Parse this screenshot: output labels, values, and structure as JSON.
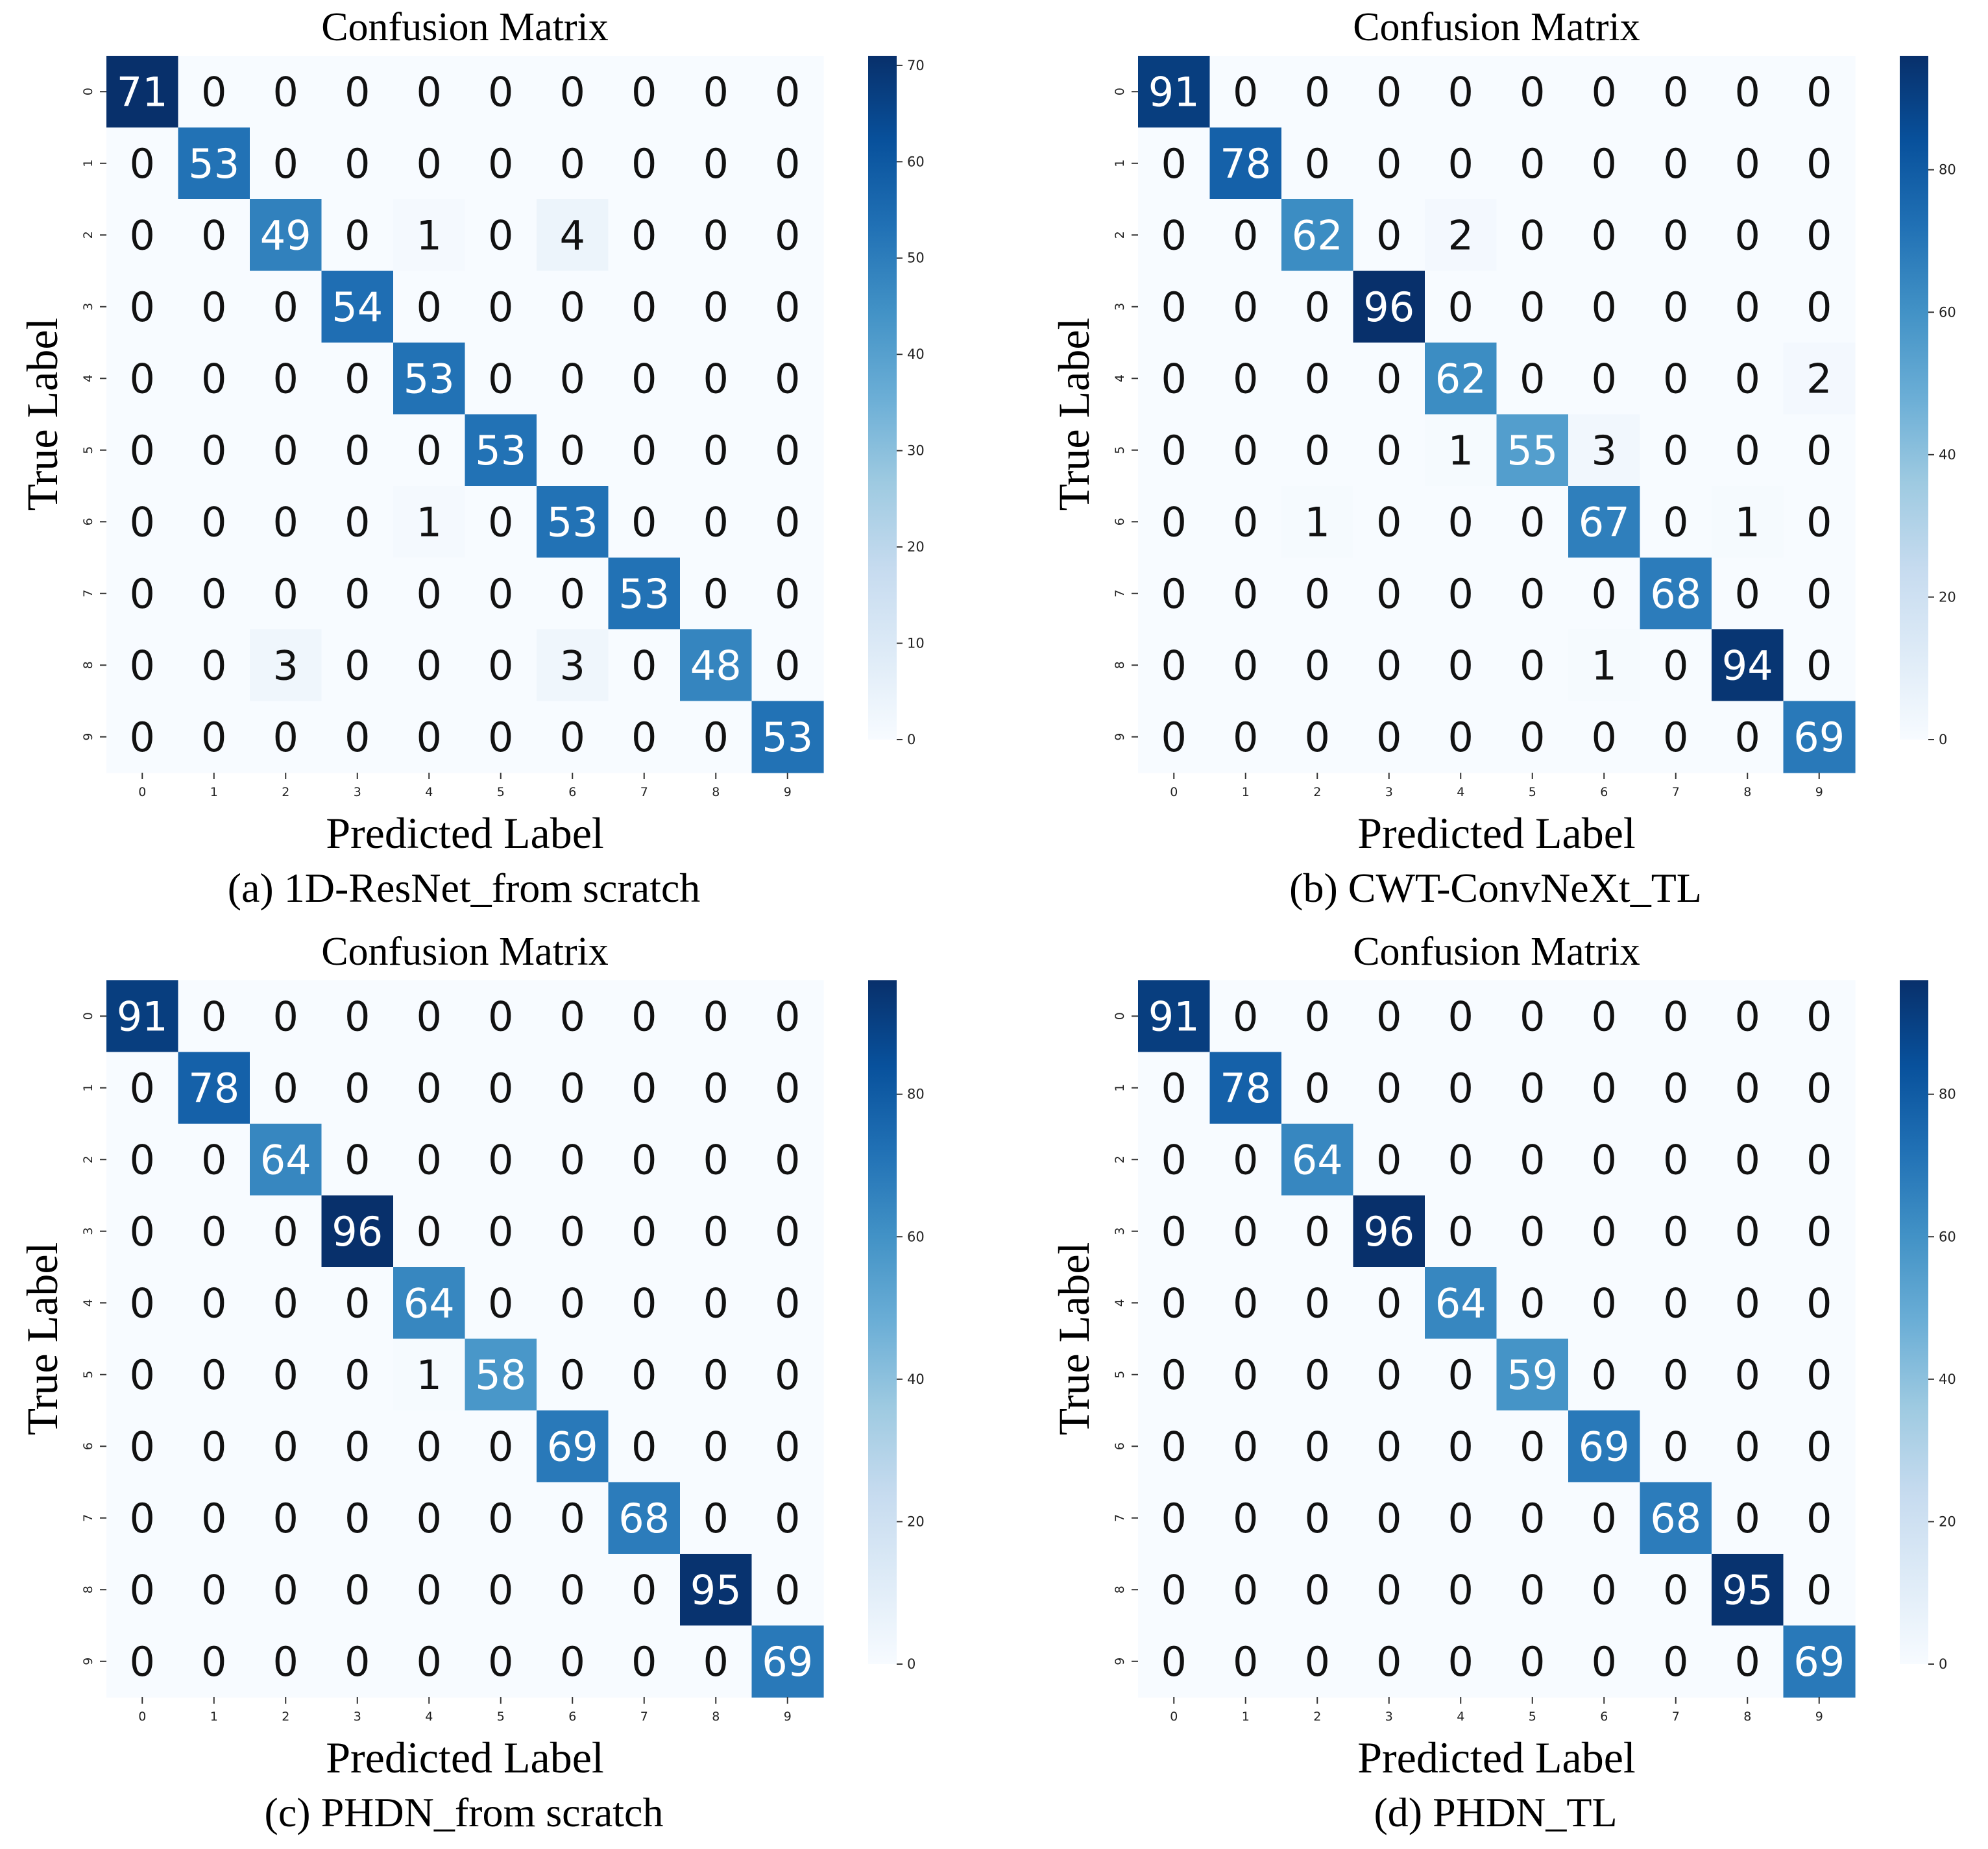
{
  "chart_data": [
    {
      "type": "heatmap",
      "title": "Confusion Matrix",
      "xlabel": "Predicted Label",
      "ylabel": "True Label",
      "caption": "(a) 1D-ResNet_from scratch",
      "x_ticks": [
        "0",
        "1",
        "2",
        "3",
        "4",
        "5",
        "6",
        "7",
        "8",
        "9"
      ],
      "y_ticks": [
        "0",
        "1",
        "2",
        "3",
        "4",
        "5",
        "6",
        "7",
        "8",
        "9"
      ],
      "colorbar": {
        "vmin": 0,
        "vmax": 71,
        "ticks": [
          0,
          10,
          20,
          30,
          40,
          50,
          60,
          70
        ]
      },
      "matrix": [
        [
          71,
          0,
          0,
          0,
          0,
          0,
          0,
          0,
          0,
          0
        ],
        [
          0,
          53,
          0,
          0,
          0,
          0,
          0,
          0,
          0,
          0
        ],
        [
          0,
          0,
          49,
          0,
          1,
          0,
          4,
          0,
          0,
          0
        ],
        [
          0,
          0,
          0,
          54,
          0,
          0,
          0,
          0,
          0,
          0
        ],
        [
          0,
          0,
          0,
          0,
          53,
          0,
          0,
          0,
          0,
          0
        ],
        [
          0,
          0,
          0,
          0,
          0,
          53,
          0,
          0,
          0,
          0
        ],
        [
          0,
          0,
          0,
          0,
          1,
          0,
          53,
          0,
          0,
          0
        ],
        [
          0,
          0,
          0,
          0,
          0,
          0,
          0,
          53,
          0,
          0
        ],
        [
          0,
          0,
          3,
          0,
          0,
          0,
          3,
          0,
          48,
          0
        ],
        [
          0,
          0,
          0,
          0,
          0,
          0,
          0,
          0,
          0,
          53
        ]
      ]
    },
    {
      "type": "heatmap",
      "title": "Confusion Matrix",
      "xlabel": "Predicted Label",
      "ylabel": "True Label",
      "caption": "(b) CWT-ConvNeXt_TL",
      "x_ticks": [
        "0",
        "1",
        "2",
        "3",
        "4",
        "5",
        "6",
        "7",
        "8",
        "9"
      ],
      "y_ticks": [
        "0",
        "1",
        "2",
        "3",
        "4",
        "5",
        "6",
        "7",
        "8",
        "9"
      ],
      "colorbar": {
        "vmin": 0,
        "vmax": 96,
        "ticks": [
          0,
          20,
          40,
          60,
          80
        ]
      },
      "matrix": [
        [
          91,
          0,
          0,
          0,
          0,
          0,
          0,
          0,
          0,
          0
        ],
        [
          0,
          78,
          0,
          0,
          0,
          0,
          0,
          0,
          0,
          0
        ],
        [
          0,
          0,
          62,
          0,
          2,
          0,
          0,
          0,
          0,
          0
        ],
        [
          0,
          0,
          0,
          96,
          0,
          0,
          0,
          0,
          0,
          0
        ],
        [
          0,
          0,
          0,
          0,
          62,
          0,
          0,
          0,
          0,
          2
        ],
        [
          0,
          0,
          0,
          0,
          1,
          55,
          3,
          0,
          0,
          0
        ],
        [
          0,
          0,
          1,
          0,
          0,
          0,
          67,
          0,
          1,
          0
        ],
        [
          0,
          0,
          0,
          0,
          0,
          0,
          0,
          68,
          0,
          0
        ],
        [
          0,
          0,
          0,
          0,
          0,
          0,
          1,
          0,
          94,
          0
        ],
        [
          0,
          0,
          0,
          0,
          0,
          0,
          0,
          0,
          0,
          69
        ]
      ]
    },
    {
      "type": "heatmap",
      "title": "Confusion Matrix",
      "xlabel": "Predicted Label",
      "ylabel": "True Label",
      "caption": "(c) PHDN_from scratch",
      "x_ticks": [
        "0",
        "1",
        "2",
        "3",
        "4",
        "5",
        "6",
        "7",
        "8",
        "9"
      ],
      "y_ticks": [
        "0",
        "1",
        "2",
        "3",
        "4",
        "5",
        "6",
        "7",
        "8",
        "9"
      ],
      "colorbar": {
        "vmin": 0,
        "vmax": 96,
        "ticks": [
          0,
          20,
          40,
          60,
          80
        ]
      },
      "matrix": [
        [
          91,
          0,
          0,
          0,
          0,
          0,
          0,
          0,
          0,
          0
        ],
        [
          0,
          78,
          0,
          0,
          0,
          0,
          0,
          0,
          0,
          0
        ],
        [
          0,
          0,
          64,
          0,
          0,
          0,
          0,
          0,
          0,
          0
        ],
        [
          0,
          0,
          0,
          96,
          0,
          0,
          0,
          0,
          0,
          0
        ],
        [
          0,
          0,
          0,
          0,
          64,
          0,
          0,
          0,
          0,
          0
        ],
        [
          0,
          0,
          0,
          0,
          1,
          58,
          0,
          0,
          0,
          0
        ],
        [
          0,
          0,
          0,
          0,
          0,
          0,
          69,
          0,
          0,
          0
        ],
        [
          0,
          0,
          0,
          0,
          0,
          0,
          0,
          68,
          0,
          0
        ],
        [
          0,
          0,
          0,
          0,
          0,
          0,
          0,
          0,
          95,
          0
        ],
        [
          0,
          0,
          0,
          0,
          0,
          0,
          0,
          0,
          0,
          69
        ]
      ]
    },
    {
      "type": "heatmap",
      "title": "Confusion Matrix",
      "xlabel": "Predicted Label",
      "ylabel": "True Label",
      "caption": "(d) PHDN_TL",
      "x_ticks": [
        "0",
        "1",
        "2",
        "3",
        "4",
        "5",
        "6",
        "7",
        "8",
        "9"
      ],
      "y_ticks": [
        "0",
        "1",
        "2",
        "3",
        "4",
        "5",
        "6",
        "7",
        "8",
        "9"
      ],
      "colorbar": {
        "vmin": 0,
        "vmax": 96,
        "ticks": [
          0,
          20,
          40,
          60,
          80
        ]
      },
      "matrix": [
        [
          91,
          0,
          0,
          0,
          0,
          0,
          0,
          0,
          0,
          0
        ],
        [
          0,
          78,
          0,
          0,
          0,
          0,
          0,
          0,
          0,
          0
        ],
        [
          0,
          0,
          64,
          0,
          0,
          0,
          0,
          0,
          0,
          0
        ],
        [
          0,
          0,
          0,
          96,
          0,
          0,
          0,
          0,
          0,
          0
        ],
        [
          0,
          0,
          0,
          0,
          64,
          0,
          0,
          0,
          0,
          0
        ],
        [
          0,
          0,
          0,
          0,
          0,
          59,
          0,
          0,
          0,
          0
        ],
        [
          0,
          0,
          0,
          0,
          0,
          0,
          69,
          0,
          0,
          0
        ],
        [
          0,
          0,
          0,
          0,
          0,
          0,
          0,
          68,
          0,
          0
        ],
        [
          0,
          0,
          0,
          0,
          0,
          0,
          0,
          0,
          95,
          0
        ],
        [
          0,
          0,
          0,
          0,
          0,
          0,
          0,
          0,
          0,
          69
        ]
      ]
    }
  ]
}
